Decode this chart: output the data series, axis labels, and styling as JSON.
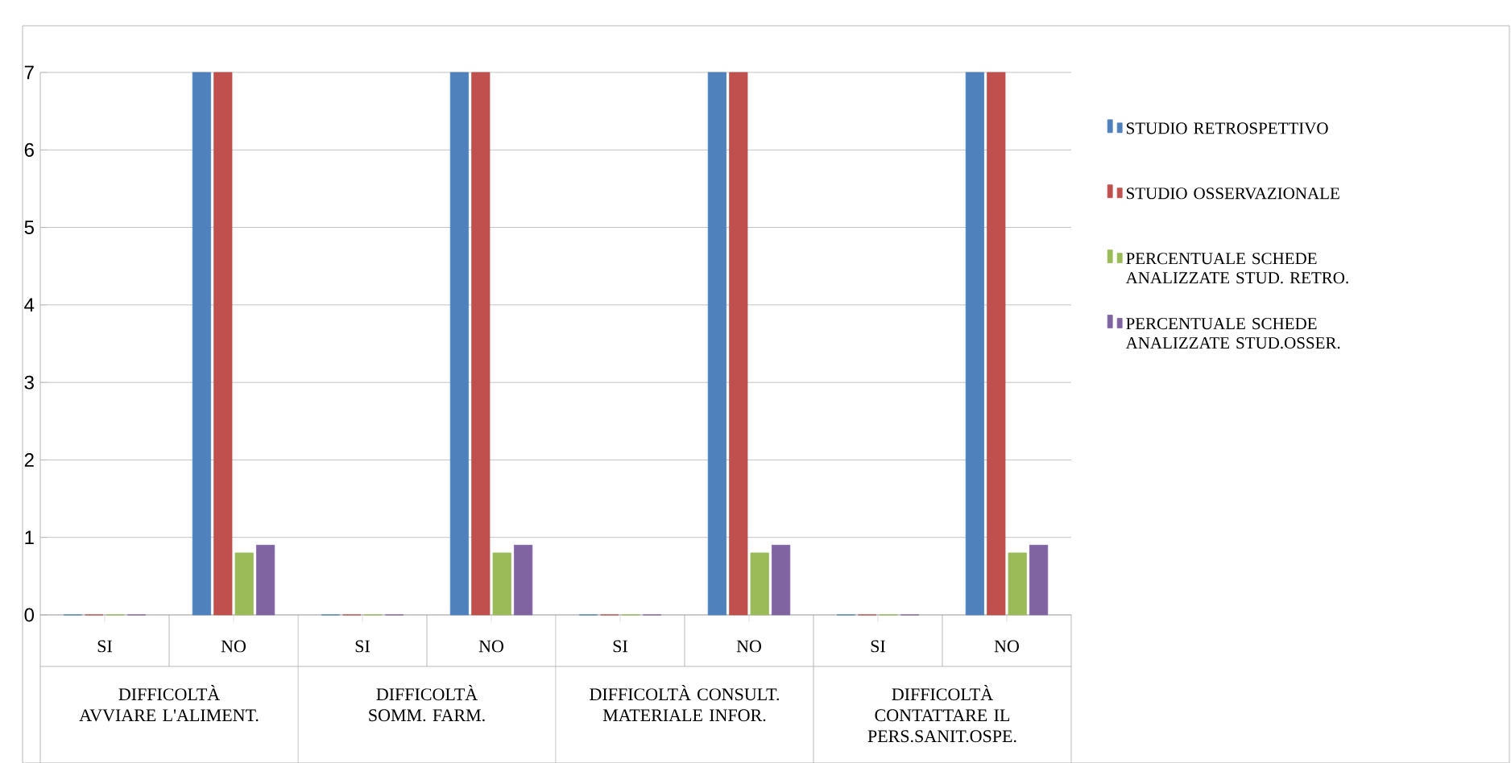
{
  "chart_data": {
    "type": "bar",
    "categories": [
      "SI",
      "NO",
      "SI",
      "NO",
      "SI",
      "NO",
      "SI",
      "NO"
    ],
    "series": [
      {
        "name": "STUDIO RETROSPETTIVO",
        "color": "#4f81bd",
        "values": [
          0,
          7,
          0,
          7,
          0,
          7,
          0,
          7
        ]
      },
      {
        "name": "STUDIO OSSERVAZIONALE",
        "color": "#c0504d",
        "values": [
          0,
          7,
          0,
          7,
          0,
          7,
          0,
          7
        ]
      },
      {
        "name": "PERCENTUALE SCHEDE ANALIZZATE STUD. RETRO.",
        "color": "#9bbb59",
        "values": [
          0,
          0.8,
          0,
          0.8,
          0,
          0.8,
          0,
          0.8
        ]
      },
      {
        "name": "PERCENTUALE SCHEDE ANALIZZATE STUD.OSSER.",
        "color": "#8064a2",
        "values": [
          0,
          0.9,
          0,
          0.9,
          0,
          0.9,
          0,
          0.9
        ]
      }
    ],
    "annotations": [
      "DIFFICOLTÀ AVVIARE L'ALIMENT.",
      "DIFFICOLTÀ  SOMM. FARM.",
      "DIFFICOLTÀ CONSULT. MATERIALE INFOR.",
      "DIFFICOLTÀ CONTATTARE IL PERS.SANIT.OSPE."
    ],
    "ylim": [
      0,
      7
    ],
    "yticks": [
      0,
      1,
      2,
      3,
      4,
      5,
      6,
      7
    ],
    "grid": "y",
    "legend": "right"
  }
}
